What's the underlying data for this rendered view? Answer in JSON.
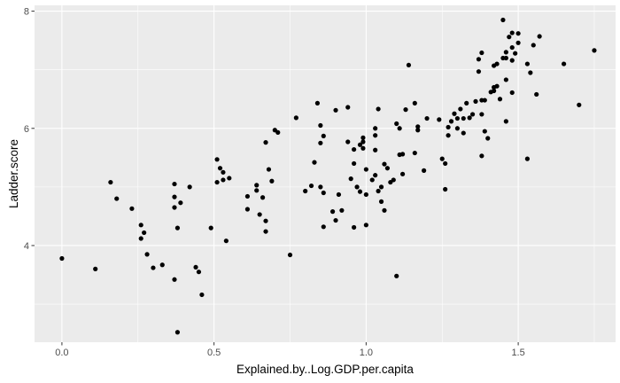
{
  "colors": {
    "panel_background": "#ebebeb",
    "grid_major": "#ffffff",
    "point": "#000000",
    "tick_label": "#4d4d4d"
  },
  "chart_data": {
    "type": "scatter",
    "xlabel": "Explained.by..Log.GDP.per.capita",
    "ylabel": "Ladder.score",
    "xlim": [
      -0.09,
      1.82
    ],
    "ylim": [
      2.35,
      8.1
    ],
    "x_ticks": [
      0.0,
      0.5,
      1.0,
      1.5
    ],
    "x_tick_labels": [
      "0.0",
      "0.5",
      "1.0",
      "1.5"
    ],
    "y_ticks": [
      4,
      6,
      8
    ],
    "y_tick_labels": [
      "4",
      "6",
      "8"
    ],
    "grid": true,
    "legend": "none",
    "points": [
      [
        0.0,
        3.78
      ],
      [
        0.11,
        3.6
      ],
      [
        0.16,
        5.08
      ],
      [
        0.18,
        4.8
      ],
      [
        0.23,
        4.63
      ],
      [
        0.26,
        4.35
      ],
      [
        0.26,
        4.12
      ],
      [
        0.27,
        4.22
      ],
      [
        0.28,
        3.85
      ],
      [
        0.3,
        3.62
      ],
      [
        0.33,
        3.67
      ],
      [
        0.37,
        5.05
      ],
      [
        0.37,
        4.83
      ],
      [
        0.37,
        4.65
      ],
      [
        0.38,
        4.3
      ],
      [
        0.37,
        3.42
      ],
      [
        0.38,
        2.52
      ],
      [
        0.39,
        4.73
      ],
      [
        0.42,
        5.0
      ],
      [
        0.44,
        3.63
      ],
      [
        0.45,
        3.55
      ],
      [
        0.46,
        3.16
      ],
      [
        0.49,
        4.3
      ],
      [
        0.51,
        5.47
      ],
      [
        0.51,
        5.08
      ],
      [
        0.52,
        5.32
      ],
      [
        0.53,
        5.25
      ],
      [
        0.53,
        5.12
      ],
      [
        0.54,
        4.08
      ],
      [
        0.55,
        5.15
      ],
      [
        0.61,
        4.84
      ],
      [
        0.61,
        4.62
      ],
      [
        0.64,
        5.03
      ],
      [
        0.64,
        4.94
      ],
      [
        0.65,
        4.53
      ],
      [
        0.66,
        4.82
      ],
      [
        0.67,
        4.42
      ],
      [
        0.67,
        4.24
      ],
      [
        0.67,
        5.76
      ],
      [
        0.68,
        5.3
      ],
      [
        0.69,
        5.1
      ],
      [
        0.7,
        5.97
      ],
      [
        0.71,
        5.93
      ],
      [
        0.75,
        3.84
      ],
      [
        0.77,
        6.18
      ],
      [
        0.8,
        4.93
      ],
      [
        0.82,
        5.02
      ],
      [
        0.83,
        5.42
      ],
      [
        0.84,
        6.43
      ],
      [
        0.85,
        6.05
      ],
      [
        0.85,
        5.75
      ],
      [
        0.85,
        5.0
      ],
      [
        0.86,
        5.87
      ],
      [
        0.86,
        4.9
      ],
      [
        0.86,
        4.32
      ],
      [
        0.89,
        4.58
      ],
      [
        0.9,
        6.31
      ],
      [
        0.9,
        4.43
      ],
      [
        0.91,
        4.87
      ],
      [
        0.92,
        4.6
      ],
      [
        0.94,
        6.36
      ],
      [
        0.94,
        5.77
      ],
      [
        0.95,
        5.14
      ],
      [
        0.96,
        5.64
      ],
      [
        0.96,
        5.4
      ],
      [
        0.96,
        4.31
      ],
      [
        0.97,
        5.0
      ],
      [
        0.98,
        5.72
      ],
      [
        0.98,
        4.92
      ],
      [
        0.99,
        5.84
      ],
      [
        0.99,
        5.77
      ],
      [
        0.99,
        5.66
      ],
      [
        1.0,
        5.3
      ],
      [
        1.0,
        4.87
      ],
      [
        1.0,
        4.35
      ],
      [
        1.02,
        5.12
      ],
      [
        1.03,
        6.0
      ],
      [
        1.03,
        5.88
      ],
      [
        1.03,
        5.63
      ],
      [
        1.03,
        5.2
      ],
      [
        1.04,
        6.33
      ],
      [
        1.04,
        4.93
      ],
      [
        1.05,
        5.0
      ],
      [
        1.05,
        4.75
      ],
      [
        1.06,
        5.39
      ],
      [
        1.06,
        4.6
      ],
      [
        1.07,
        5.32
      ],
      [
        1.08,
        5.08
      ],
      [
        1.09,
        5.12
      ],
      [
        1.1,
        3.48
      ],
      [
        1.1,
        6.08
      ],
      [
        1.11,
        6.0
      ],
      [
        1.11,
        5.55
      ],
      [
        1.12,
        5.22
      ],
      [
        1.12,
        5.56
      ],
      [
        1.13,
        6.32
      ],
      [
        1.14,
        7.08
      ],
      [
        1.16,
        5.58
      ],
      [
        1.16,
        6.43
      ],
      [
        1.17,
        6.03
      ],
      [
        1.17,
        5.97
      ],
      [
        1.19,
        5.28
      ],
      [
        1.2,
        6.17
      ],
      [
        1.24,
        6.15
      ],
      [
        1.25,
        5.48
      ],
      [
        1.26,
        5.4
      ],
      [
        1.26,
        4.96
      ],
      [
        1.27,
        6.02
      ],
      [
        1.27,
        5.88
      ],
      [
        1.28,
        6.12
      ],
      [
        1.29,
        6.25
      ],
      [
        1.3,
        6.0
      ],
      [
        1.3,
        6.17
      ],
      [
        1.31,
        6.33
      ],
      [
        1.32,
        6.17
      ],
      [
        1.32,
        5.92
      ],
      [
        1.33,
        6.43
      ],
      [
        1.34,
        6.18
      ],
      [
        1.35,
        6.24
      ],
      [
        1.36,
        6.46
      ],
      [
        1.37,
        6.97
      ],
      [
        1.37,
        7.18
      ],
      [
        1.38,
        7.29
      ],
      [
        1.38,
        6.48
      ],
      [
        1.38,
        6.24
      ],
      [
        1.38,
        5.53
      ],
      [
        1.39,
        6.48
      ],
      [
        1.39,
        5.95
      ],
      [
        1.4,
        5.83
      ],
      [
        1.41,
        6.62
      ],
      [
        1.42,
        6.7
      ],
      [
        1.42,
        7.07
      ],
      [
        1.42,
        6.64
      ],
      [
        1.43,
        6.72
      ],
      [
        1.43,
        7.1
      ],
      [
        1.44,
        6.5
      ],
      [
        1.45,
        7.85
      ],
      [
        1.45,
        7.2
      ],
      [
        1.46,
        7.2
      ],
      [
        1.46,
        7.3
      ],
      [
        1.46,
        6.83
      ],
      [
        1.46,
        6.12
      ],
      [
        1.47,
        7.56
      ],
      [
        1.48,
        7.63
      ],
      [
        1.48,
        7.38
      ],
      [
        1.48,
        7.16
      ],
      [
        1.48,
        6.61
      ],
      [
        1.49,
        7.28
      ],
      [
        1.5,
        7.62
      ],
      [
        1.5,
        7.46
      ],
      [
        1.53,
        7.1
      ],
      [
        1.53,
        5.48
      ],
      [
        1.54,
        6.95
      ],
      [
        1.55,
        7.42
      ],
      [
        1.56,
        6.58
      ],
      [
        1.57,
        7.57
      ],
      [
        1.65,
        7.1
      ],
      [
        1.7,
        6.4
      ],
      [
        1.75,
        7.33
      ]
    ]
  }
}
